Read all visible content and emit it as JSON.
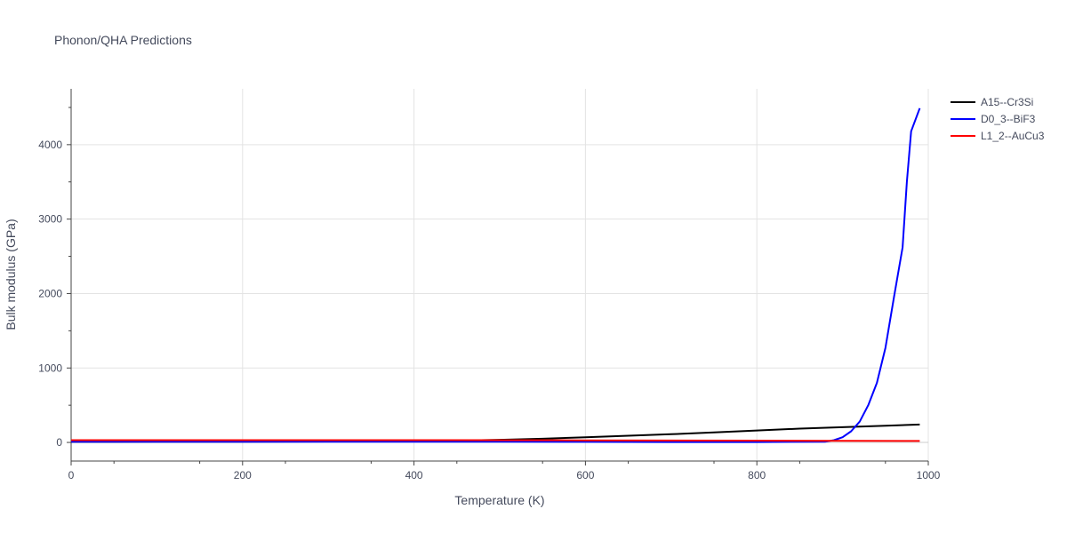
{
  "chart_data": {
    "type": "line",
    "title": "Phonon/QHA Predictions",
    "xlabel": "Temperature (K)",
    "ylabel": "Bulk modulus (GPa)",
    "xlim": [
      0,
      1000
    ],
    "ylim": [
      -250,
      4750
    ],
    "x_ticks": [
      0,
      200,
      400,
      600,
      800,
      1000
    ],
    "x_tick_labels": [
      "0",
      "200",
      "400",
      "600",
      "800",
      "1000"
    ],
    "y_ticks": [
      0,
      1000,
      2000,
      3000,
      4000
    ],
    "y_tick_labels": [
      "0",
      "1000",
      "2000",
      "3000",
      "4000"
    ],
    "grid": true,
    "legend_position": "top-right, outside plot",
    "series": [
      {
        "name": "A15--Cr3Si",
        "color": "#000000",
        "x": [
          0,
          100,
          200,
          300,
          400,
          450,
          500,
          550,
          600,
          650,
          700,
          750,
          800,
          850,
          900,
          950,
          990
        ],
        "y": [
          8,
          9,
          10,
          12,
          18,
          25,
          35,
          50,
          70,
          90,
          110,
          135,
          160,
          185,
          205,
          225,
          240
        ]
      },
      {
        "name": "D0_3--BiF3",
        "color": "#0000ff",
        "x": [
          0,
          200,
          400,
          500,
          600,
          700,
          800,
          880,
          890,
          900,
          910,
          920,
          930,
          940,
          950,
          960,
          970,
          975,
          980,
          990
        ],
        "y": [
          10,
          10,
          10,
          10,
          8,
          5,
          5,
          10,
          30,
          70,
          150,
          280,
          500,
          800,
          1270,
          1950,
          2620,
          3500,
          4180,
          4490
        ]
      },
      {
        "name": "L1_2--AuCu3",
        "color": "#ff0000",
        "x": [
          0,
          200,
          400,
          600,
          800,
          990
        ],
        "y": [
          30,
          30,
          30,
          28,
          25,
          20
        ]
      }
    ]
  }
}
